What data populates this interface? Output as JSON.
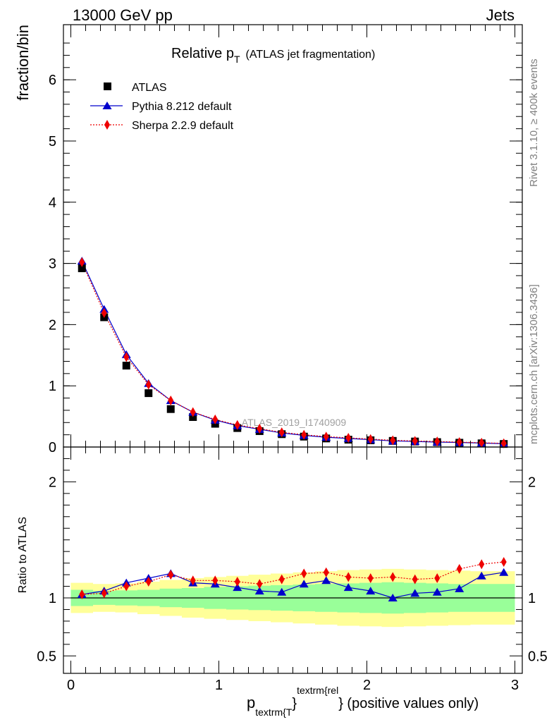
{
  "header": {
    "left": "13000 GeV pp",
    "right": "Jets"
  },
  "side_labels": {
    "top": "Rivet 3.1.10, ≥ 400k events",
    "bottom": "mcplots.cern.ch [arXiv:1306.3436]"
  },
  "chart_data": {
    "type": "line",
    "title_main": "Relative p",
    "title_sub": "T",
    "title_rest": "(ATLAS jet fragmentation)",
    "ylabel": "fraction/bin",
    "ratio_ylabel": "Ratio to ATLAS",
    "xlabel_p": "p",
    "xlabel_sub": "textrm{T",
    "xlabel_brace": "}",
    "xlabel_sup": "textrm{rel",
    "xlabel_rest": "} (positive values only)",
    "watermark": "ATLAS_2019_I1740909",
    "xlim": [
      -0.05,
      3.05
    ],
    "ylim": [
      0,
      6.9
    ],
    "ratio_ylim": [
      0.35,
      2.3
    ],
    "x_ticks": [
      {
        "value": 0,
        "label": "0"
      },
      {
        "value": 1,
        "label": "1"
      },
      {
        "value": 2,
        "label": "2"
      },
      {
        "value": 3,
        "label": "3"
      }
    ],
    "y_ticks": [
      {
        "value": 0,
        "label": "0"
      },
      {
        "value": 1,
        "label": "1"
      },
      {
        "value": 2,
        "label": "2"
      },
      {
        "value": 3,
        "label": "3"
      },
      {
        "value": 4,
        "label": "4"
      },
      {
        "value": 5,
        "label": "5"
      },
      {
        "value": 6,
        "label": "6"
      }
    ],
    "ratio_ticks": [
      {
        "value": 0.5,
        "label": "0.5"
      },
      {
        "value": 1,
        "label": "1"
      },
      {
        "value": 2,
        "label": "2"
      }
    ],
    "bin_edges": [
      0,
      0.15,
      0.3,
      0.45,
      0.6,
      0.75,
      0.9,
      1.05,
      1.2,
      1.35,
      1.5,
      1.65,
      1.8,
      1.95,
      2.1,
      2.25,
      2.4,
      2.55,
      2.7,
      2.85,
      3.0
    ],
    "x": [
      0.075,
      0.225,
      0.375,
      0.525,
      0.675,
      0.825,
      0.975,
      1.125,
      1.275,
      1.425,
      1.575,
      1.725,
      1.875,
      2.025,
      2.175,
      2.325,
      2.475,
      2.625,
      2.775,
      2.925
    ],
    "series": [
      {
        "name": "ATLAS",
        "style": "square",
        "color": "#000000",
        "values": [
          2.92,
          2.12,
          1.33,
          0.88,
          0.62,
          0.49,
          0.38,
          0.31,
          0.26,
          0.21,
          0.17,
          0.14,
          0.12,
          0.11,
          0.1,
          0.09,
          0.08,
          0.07,
          0.06,
          0.05
        ]
      },
      {
        "name": "Pythia 8.212 default",
        "style": "triangle",
        "color": "#0000cc",
        "values": [
          3.04,
          2.25,
          1.51,
          1.04,
          0.76,
          0.57,
          0.44,
          0.35,
          0.29,
          0.23,
          0.19,
          0.16,
          0.14,
          0.12,
          0.1,
          0.09,
          0.08,
          0.075,
          0.065,
          0.055
        ]
      },
      {
        "name": "Sherpa 2.2.9 default",
        "style": "diamond",
        "color": "#ee0000",
        "values": [
          3.02,
          2.19,
          1.47,
          1.02,
          0.76,
          0.57,
          0.45,
          0.36,
          0.3,
          0.24,
          0.2,
          0.17,
          0.15,
          0.13,
          0.11,
          0.1,
          0.09,
          0.08,
          0.07,
          0.06
        ]
      }
    ],
    "ratios": [
      {
        "name": "Pythia 8.212 default",
        "values": [
          1.03,
          1.06,
          1.13,
          1.17,
          1.21,
          1.13,
          1.12,
          1.09,
          1.06,
          1.05,
          1.12,
          1.15,
          1.09,
          1.06,
          1.0,
          1.04,
          1.05,
          1.08,
          1.19,
          1.22
        ]
      },
      {
        "name": "Sherpa 2.2.9 default",
        "values": [
          1.03,
          1.04,
          1.1,
          1.14,
          1.2,
          1.15,
          1.15,
          1.14,
          1.12,
          1.16,
          1.21,
          1.22,
          1.18,
          1.17,
          1.18,
          1.16,
          1.17,
          1.25,
          1.29,
          1.31
        ]
      }
    ],
    "ratio_errors_upper_tick_points": "",
    "ratio_band_green": [
      0.07,
      0.06,
      0.065,
      0.07,
      0.08,
      0.085,
      0.095,
      0.1,
      0.105,
      0.11,
      0.115,
      0.12,
      0.125,
      0.13,
      0.135,
      0.13,
      0.125,
      0.12,
      0.12,
      0.12
    ],
    "ratio_band_yellow": [
      0.13,
      0.12,
      0.125,
      0.14,
      0.155,
      0.17,
      0.18,
      0.19,
      0.2,
      0.21,
      0.22,
      0.23,
      0.24,
      0.245,
      0.25,
      0.245,
      0.24,
      0.235,
      0.23,
      0.23
    ]
  }
}
